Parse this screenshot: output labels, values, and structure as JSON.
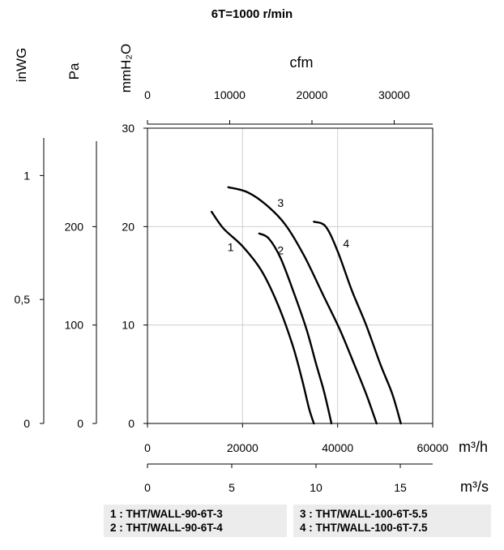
{
  "chart_data": {
    "type": "line",
    "title": "6T=1000 r/min",
    "x_primary": {
      "unit": "m³/h",
      "range": [
        0,
        60000
      ],
      "ticks": [
        "0",
        "20000",
        "40000",
        "60000"
      ]
    },
    "x_secondary_top": {
      "unit": "cfm",
      "ticks": [
        "0",
        "10000",
        "20000",
        "30000"
      ]
    },
    "x_secondary_bottom": {
      "unit": "m³/s",
      "ticks": [
        "0",
        "5",
        "10",
        "15"
      ]
    },
    "y_primary": {
      "unit": "mmH₂O",
      "range": [
        0,
        30
      ],
      "ticks": [
        "0",
        "10",
        "20",
        "30"
      ]
    },
    "y_pa": {
      "unit": "Pa",
      "ticks": [
        "0",
        "100",
        "200"
      ]
    },
    "y_inwg": {
      "unit": "inWG",
      "ticks": [
        "0",
        "0,5",
        "1"
      ]
    },
    "grid": true,
    "series": [
      {
        "name": "1",
        "x": [
          13500,
          16000,
          20000,
          24000,
          27500,
          30500,
          32500,
          34000,
          35000
        ],
        "y": [
          21.5,
          19.8,
          18.0,
          15.5,
          12.0,
          8.0,
          4.5,
          1.5,
          0
        ]
      },
      {
        "name": "2",
        "x": [
          23500,
          25500,
          28000,
          31000,
          33500,
          35500,
          37000,
          38000,
          38700
        ],
        "y": [
          19.3,
          18.8,
          16.8,
          13.0,
          9.5,
          6.0,
          3.5,
          1.5,
          0
        ]
      },
      {
        "name": "3",
        "x": [
          17000,
          21000,
          25000,
          29000,
          33000,
          37000,
          40500,
          43500,
          46000,
          48200
        ],
        "y": [
          24.0,
          23.5,
          22.2,
          20.2,
          17.0,
          13.0,
          9.5,
          6.0,
          3.0,
          0
        ]
      },
      {
        "name": "4",
        "x": [
          35000,
          37500,
          40000,
          43000,
          46000,
          49000,
          51500,
          53300
        ],
        "y": [
          20.5,
          20.0,
          17.5,
          13.5,
          10.0,
          6.0,
          3.0,
          0
        ]
      }
    ],
    "curve_labels": [
      {
        "text": "1",
        "x": 17500,
        "y": 17.5
      },
      {
        "text": "2",
        "x": 28000,
        "y": 17.2
      },
      {
        "text": "3",
        "x": 28000,
        "y": 22.0
      },
      {
        "text": "4",
        "x": 41800,
        "y": 17.9
      }
    ]
  },
  "legend": {
    "left": [
      "1 : THT/WALL-90-6T-3",
      "2 : THT/WALL-90-6T-4"
    ],
    "right": [
      "3 : THT/WALL-100-6T-5.5",
      "4 : THT/WALL-100-6T-7.5"
    ]
  }
}
